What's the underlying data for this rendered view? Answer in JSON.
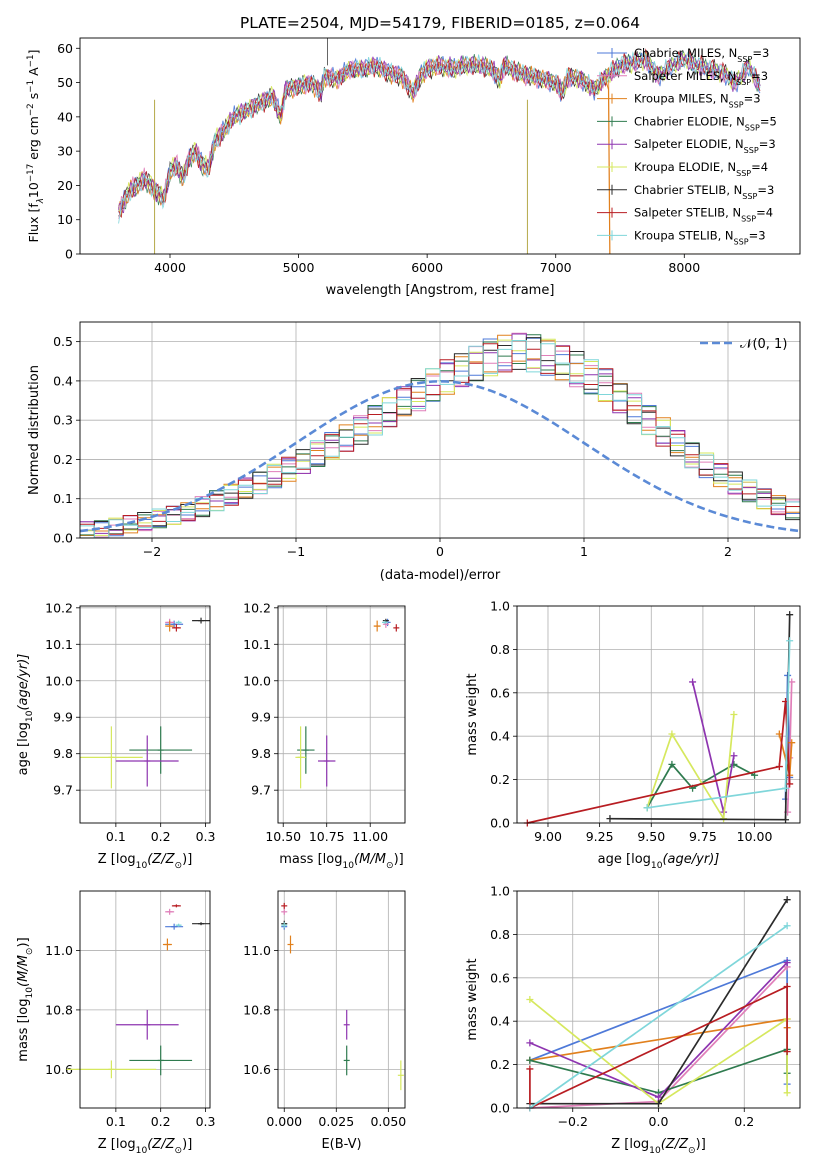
{
  "colors": {
    "series": [
      "#4e79d8",
      "#e07fb9",
      "#e1801d",
      "#2f7b4f",
      "#8e35b0",
      "#d6e85e",
      "#2b2b2b",
      "#b81d22",
      "#7fd6da"
    ],
    "gauss": "#5b8ad6",
    "grid": "#b0b0b0"
  },
  "chart_data": [
    {
      "id": "spectrum",
      "type": "line",
      "title": "PLATE=2504, MJD=54179, FIBERID=0185, z=0.064",
      "xlabel": "wavelength [Angstrom, rest frame]",
      "ylabel": "Flux [f",
      "ylabel_sub": "λ",
      "ylabel_tail": "10",
      "ylabel_sup1": "−17",
      "ylabel_tail2": " erg cm",
      "ylabel_sup2": "−2",
      "ylabel_tail3": " s",
      "ylabel_sup3": "−1",
      "ylabel_tail4": " A",
      "ylabel_sup4": "−1",
      "ylabel_end": "]",
      "xlim": [
        3300,
        8900
      ],
      "ylim": [
        0,
        63
      ],
      "xticks": [
        4000,
        5000,
        6000,
        7000,
        8000
      ],
      "yticks": [
        0,
        10,
        20,
        30,
        40,
        50,
        60
      ],
      "legend_position": "upper right",
      "legend": [
        {
          "name": "Chabrier MILES, N",
          "sub": "SSP",
          "tail": "=3"
        },
        {
          "name": "Salpeter MILES, N",
          "sub": "SSP",
          "tail": "=3"
        },
        {
          "name": "Kroupa MILES, N",
          "sub": "SSP",
          "tail": "=3"
        },
        {
          "name": "Chabrier ELODIE, N",
          "sub": "SSP",
          "tail": "=5"
        },
        {
          "name": "Salpeter ELODIE, N",
          "sub": "SSP",
          "tail": "=3"
        },
        {
          "name": "Kroupa ELODIE, N",
          "sub": "SSP",
          "tail": "=4"
        },
        {
          "name": "Chabrier STELIB, N",
          "sub": "SSP",
          "tail": "=3"
        },
        {
          "name": "Salpeter STELIB, N",
          "sub": "SSP",
          "tail": "=4"
        },
        {
          "name": "Kroupa STELIB, N",
          "sub": "SSP",
          "tail": "=3"
        }
      ],
      "spectrum_x": [
        3600,
        3650,
        3700,
        3750,
        3800,
        3850,
        3900,
        3950,
        4000,
        4050,
        4100,
        4150,
        4200,
        4250,
        4300,
        4350,
        4400,
        4500,
        4600,
        4700,
        4800,
        4860,
        4900,
        5000,
        5100,
        5175,
        5200,
        5300,
        5400,
        5500,
        5600,
        5700,
        5800,
        5890,
        5950,
        6000,
        6100,
        6200,
        6300,
        6400,
        6500,
        6563,
        6600,
        6700,
        6800,
        6900,
        7000,
        7050,
        7100,
        7200,
        7300,
        7400,
        7500,
        7600,
        7700,
        7800,
        7900,
        8000,
        8100,
        8200,
        8300,
        8400,
        8500,
        8600
      ],
      "spectrum_y": [
        12,
        16,
        19,
        20,
        22,
        20,
        18,
        16,
        24,
        26,
        22,
        28,
        30,
        26,
        25,
        33,
        35,
        40,
        42,
        44,
        46,
        40,
        48,
        49,
        50,
        47,
        52,
        51,
        54,
        54,
        55,
        53,
        52,
        47,
        52,
        54,
        55,
        54,
        55,
        55,
        54,
        51,
        55,
        53,
        52,
        51,
        50,
        47,
        52,
        51,
        48,
        52,
        55,
        56,
        57,
        52,
        55,
        57,
        55,
        54,
        53,
        50,
        55,
        48
      ]
    },
    {
      "id": "residuals",
      "type": "histogram",
      "xlabel": "(data-model)/error",
      "ylabel": "Normed distribution",
      "xlim": [
        -2.5,
        2.5
      ],
      "ylim": [
        0,
        0.55
      ],
      "xticks": [
        -2,
        -1,
        0,
        1,
        2
      ],
      "xtick_labels": [
        "−2",
        "−1",
        "0",
        "1",
        "2"
      ],
      "yticks": [
        0.0,
        0.1,
        0.2,
        0.3,
        0.4,
        0.5
      ],
      "ytick_labels": [
        "0.0",
        "0.1",
        "0.2",
        "0.3",
        "0.4",
        "0.5"
      ],
      "legend": "𝒩(0, 1)",
      "bin_width": 0.1,
      "bin_start": -2.5,
      "envelope": [
        0.02,
        0.022,
        0.028,
        0.035,
        0.042,
        0.05,
        0.058,
        0.068,
        0.08,
        0.095,
        0.11,
        0.125,
        0.14,
        0.158,
        0.175,
        0.195,
        0.215,
        0.235,
        0.255,
        0.275,
        0.3,
        0.32,
        0.345,
        0.365,
        0.39,
        0.41,
        0.43,
        0.445,
        0.46,
        0.47,
        0.475,
        0.47,
        0.46,
        0.445,
        0.43,
        0.41,
        0.39,
        0.36,
        0.33,
        0.3,
        0.27,
        0.24,
        0.21,
        0.185,
        0.16,
        0.14,
        0.12,
        0.1,
        0.085,
        0.072,
        0.06
      ]
    },
    {
      "id": "age-vs-Z",
      "type": "errorbar",
      "xlabel": "Z [log",
      "xlabel_sub": "10",
      "xlabel_tail": "(Z/Z",
      "xlabel_sub2": "⊙",
      "xlabel_end": ")]",
      "ylabel": "age  [log",
      "ylabel_sub": "10",
      "ylabel_tail": "(age/yr)]",
      "xlim": [
        0.02,
        0.31
      ],
      "ylim": [
        9.61,
        10.205
      ],
      "xticks": [
        0.1,
        0.2,
        0.3
      ],
      "yticks": [
        9.7,
        9.8,
        9.9,
        10.0,
        10.1,
        10.2
      ],
      "points": [
        {
          "s": 0,
          "x": 0.23,
          "y": 10.155,
          "xe": 0.02,
          "ye": 0.01
        },
        {
          "s": 1,
          "x": 0.22,
          "y": 10.16,
          "xe": 0.01,
          "ye": 0.01
        },
        {
          "s": 2,
          "x": 0.22,
          "y": 10.15,
          "xe": 0.01,
          "ye": 0.015
        },
        {
          "s": 3,
          "x": 0.2,
          "y": 9.81,
          "xe": 0.07,
          "ye": 0.065
        },
        {
          "s": 4,
          "x": 0.17,
          "y": 9.78,
          "xe": 0.07,
          "ye": 0.07
        },
        {
          "s": 5,
          "x": 0.09,
          "y": 9.79,
          "xe": 0.07,
          "ye": 0.085
        },
        {
          "s": 6,
          "x": 0.29,
          "y": 10.165,
          "xe": 0.02,
          "ye": 0.008
        },
        {
          "s": 7,
          "x": 0.235,
          "y": 10.145,
          "xe": 0.01,
          "ye": 0.01
        },
        {
          "s": 8,
          "x": 0.24,
          "y": 10.16,
          "xe": 0.005,
          "ye": 0.005
        }
      ]
    },
    {
      "id": "age-vs-mass",
      "type": "errorbar",
      "xlabel": "mass [log",
      "xlabel_sub": "10",
      "xlabel_tail": "(M/M",
      "xlabel_sub2": "⊙",
      "xlabel_end": ")]",
      "xlim": [
        10.47,
        11.2
      ],
      "ylim": [
        9.61,
        10.205
      ],
      "xticks": [
        10.5,
        10.75,
        11.0
      ],
      "xtick_labels": [
        "10.50",
        "10.75",
        "11.00"
      ],
      "yticks": [
        9.7,
        9.8,
        9.9,
        10.0,
        10.1,
        10.2
      ],
      "points": [
        {
          "s": 0,
          "x": 11.1,
          "y": 10.16,
          "xe": 0.01,
          "ye": 0.01
        },
        {
          "s": 1,
          "x": 11.09,
          "y": 10.155,
          "xe": 0.01,
          "ye": 0.01
        },
        {
          "s": 2,
          "x": 11.04,
          "y": 10.15,
          "xe": 0.02,
          "ye": 0.015
        },
        {
          "s": 3,
          "x": 10.63,
          "y": 9.81,
          "xe": 0.05,
          "ye": 0.065
        },
        {
          "s": 4,
          "x": 10.75,
          "y": 9.78,
          "xe": 0.05,
          "ye": 0.07
        },
        {
          "s": 5,
          "x": 10.6,
          "y": 9.79,
          "xe": 0.03,
          "ye": 0.085
        },
        {
          "s": 6,
          "x": 11.09,
          "y": 10.165,
          "xe": 0.005,
          "ye": 0.005
        },
        {
          "s": 7,
          "x": 11.15,
          "y": 10.145,
          "xe": 0.005,
          "ye": 0.01
        },
        {
          "s": 8,
          "x": 11.085,
          "y": 10.16,
          "xe": 0.005,
          "ye": 0.005
        }
      ]
    },
    {
      "id": "weight-vs-age",
      "type": "line",
      "xlabel": "age  [log",
      "xlabel_sub": "10",
      "xlabel_tail": "(age/yr)]",
      "ylabel": "mass weight",
      "xlim": [
        8.85,
        10.22
      ],
      "ylim": [
        0,
        1.0
      ],
      "xticks": [
        9.0,
        9.25,
        9.5,
        9.75,
        10.0
      ],
      "xtick_labels": [
        "9.00",
        "9.25",
        "9.50",
        "9.75",
        "10.00"
      ],
      "yticks": [
        0.0,
        0.2,
        0.4,
        0.6,
        0.8,
        1.0
      ],
      "series": [
        {
          "s": 0,
          "x": [
            10.15,
            10.16,
            10.17
          ],
          "y": [
            0.11,
            0.68,
            0.21
          ]
        },
        {
          "s": 1,
          "x": [
            10.16,
            10.17,
            10.18
          ],
          "y": [
            0.05,
            0.3,
            0.65
          ]
        },
        {
          "s": 2,
          "x": [
            10.12,
            10.17,
            10.18
          ],
          "y": [
            0.41,
            0.22,
            0.37
          ]
        },
        {
          "s": 3,
          "x": [
            9.48,
            9.6,
            9.7,
            9.9,
            10.0
          ],
          "y": [
            0.07,
            0.27,
            0.16,
            0.27,
            0.22
          ]
        },
        {
          "s": 4,
          "x": [
            9.7,
            9.85,
            9.9
          ],
          "y": [
            0.65,
            0.05,
            0.31
          ]
        },
        {
          "s": 5,
          "x": [
            9.48,
            9.6,
            9.85,
            9.9
          ],
          "y": [
            0.07,
            0.41,
            0.02,
            0.5
          ]
        },
        {
          "s": 6,
          "x": [
            9.3,
            10.15,
            10.17
          ],
          "y": [
            0.02,
            0.015,
            0.96
          ]
        },
        {
          "s": 7,
          "x": [
            8.9,
            10.12,
            10.15,
            10.17
          ],
          "y": [
            0.0,
            0.26,
            0.56,
            0.18
          ]
        },
        {
          "s": 8,
          "x": [
            9.48,
            10.15,
            10.17
          ],
          "y": [
            0.07,
            0.16,
            0.84
          ]
        }
      ]
    },
    {
      "id": "mass-vs-Z",
      "type": "errorbar",
      "xlabel": "Z [log",
      "xlabel_sub": "10",
      "xlabel_tail": "(Z/Z",
      "xlabel_sub2": "⊙",
      "xlabel_end": ")]",
      "ylabel": "mass [log",
      "ylabel_sub": "10",
      "ylabel_tail": "(M/M",
      "ylabel_sub2": "⊙",
      "ylabel_end": ")]",
      "xlim": [
        0.02,
        0.31
      ],
      "ylim": [
        10.47,
        11.2
      ],
      "xticks": [
        0.1,
        0.2,
        0.3
      ],
      "yticks": [
        10.6,
        10.8,
        11.0
      ],
      "points": [
        {
          "s": 0,
          "x": 0.23,
          "y": 11.08,
          "xe": 0.02,
          "ye": 0.01
        },
        {
          "s": 1,
          "x": 0.22,
          "y": 11.13,
          "xe": 0.01,
          "ye": 0.01
        },
        {
          "s": 2,
          "x": 0.215,
          "y": 11.02,
          "xe": 0.01,
          "ye": 0.02
        },
        {
          "s": 3,
          "x": 0.2,
          "y": 10.63,
          "xe": 0.07,
          "ye": 0.05
        },
        {
          "s": 4,
          "x": 0.17,
          "y": 10.75,
          "xe": 0.07,
          "ye": 0.05
        },
        {
          "s": 5,
          "x": 0.09,
          "y": 10.6,
          "xe": 0.1,
          "ye": 0.03
        },
        {
          "s": 6,
          "x": 0.29,
          "y": 11.09,
          "xe": 0.02,
          "ye": 0.005
        },
        {
          "s": 7,
          "x": 0.235,
          "y": 11.15,
          "xe": 0.01,
          "ye": 0.005
        },
        {
          "s": 8,
          "x": 0.24,
          "y": 11.085,
          "xe": 0.005,
          "ye": 0.005
        }
      ]
    },
    {
      "id": "mass-vs-EBV",
      "type": "errorbar",
      "xlabel": "E(B-V)",
      "xlim": [
        -0.003,
        0.058
      ],
      "ylim": [
        10.47,
        11.2
      ],
      "xticks": [
        0.0,
        0.025,
        0.05
      ],
      "xtick_labels": [
        "0.000",
        "0.025",
        "0.050"
      ],
      "yticks": [
        10.6,
        10.8,
        11.0
      ],
      "points": [
        {
          "s": 0,
          "x": 0.0,
          "y": 11.08,
          "xe": 0,
          "ye": 0.01
        },
        {
          "s": 1,
          "x": 0.0,
          "y": 11.13,
          "xe": 0,
          "ye": 0.01
        },
        {
          "s": 2,
          "x": 0.003,
          "y": 11.02,
          "xe": 0,
          "ye": 0.03
        },
        {
          "s": 3,
          "x": 0.03,
          "y": 10.63,
          "xe": 0,
          "ye": 0.05
        },
        {
          "s": 4,
          "x": 0.03,
          "y": 10.75,
          "xe": 0,
          "ye": 0.05
        },
        {
          "s": 5,
          "x": 0.056,
          "y": 10.58,
          "xe": 0,
          "ye": 0.05
        },
        {
          "s": 6,
          "x": 0.0,
          "y": 11.09,
          "xe": 0,
          "ye": 0.01
        },
        {
          "s": 7,
          "x": 0.0,
          "y": 11.15,
          "xe": 0,
          "ye": 0.01
        },
        {
          "s": 8,
          "x": 0.0,
          "y": 11.085,
          "xe": 0,
          "ye": 0.01
        }
      ]
    },
    {
      "id": "weight-vs-Z",
      "type": "line",
      "xlabel": "Z [log",
      "xlabel_sub": "10",
      "xlabel_tail": "(Z/Z",
      "xlabel_sub2": "⊙",
      "xlabel_end": ")]",
      "ylabel": "mass weight",
      "xlim": [
        -0.33,
        0.33
      ],
      "ylim": [
        0,
        1.0
      ],
      "xticks": [
        -0.2,
        0.0,
        0.2
      ],
      "xtick_labels": [
        "−0.2",
        "0.0",
        "0.2"
      ],
      "yticks": [
        0.0,
        0.2,
        0.4,
        0.6,
        0.8,
        1.0
      ],
      "series": [
        {
          "s": 0,
          "x": [
            -0.3,
            0.3,
            0.3
          ],
          "y": [
            0.22,
            0.68,
            0.11
          ]
        },
        {
          "s": 1,
          "x": [
            -0.3,
            0.0,
            0.3
          ],
          "y": [
            0.0,
            0.03,
            0.65
          ]
        },
        {
          "s": 2,
          "x": [
            -0.3,
            0.3,
            0.3
          ],
          "y": [
            0.22,
            0.41,
            0.37
          ]
        },
        {
          "s": 3,
          "x": [
            -0.3,
            0.0,
            0.3,
            0.3
          ],
          "y": [
            0.22,
            0.07,
            0.27,
            0.16
          ]
        },
        {
          "s": 4,
          "x": [
            -0.3,
            0.0,
            0.3
          ],
          "y": [
            0.3,
            0.05,
            0.67
          ]
        },
        {
          "s": 5,
          "x": [
            -0.3,
            0.0,
            0.3,
            0.3
          ],
          "y": [
            0.5,
            0.02,
            0.41,
            0.07
          ]
        },
        {
          "s": 6,
          "x": [
            -0.3,
            0.0,
            0.3
          ],
          "y": [
            0.02,
            0.02,
            0.96
          ]
        },
        {
          "s": 7,
          "x": [
            -0.3,
            -0.3,
            0.3,
            0.3
          ],
          "y": [
            0.18,
            0.0,
            0.56,
            0.26
          ]
        },
        {
          "s": 8,
          "x": [
            -0.3,
            0.3
          ],
          "y": [
            0.0,
            0.84
          ]
        }
      ]
    }
  ]
}
